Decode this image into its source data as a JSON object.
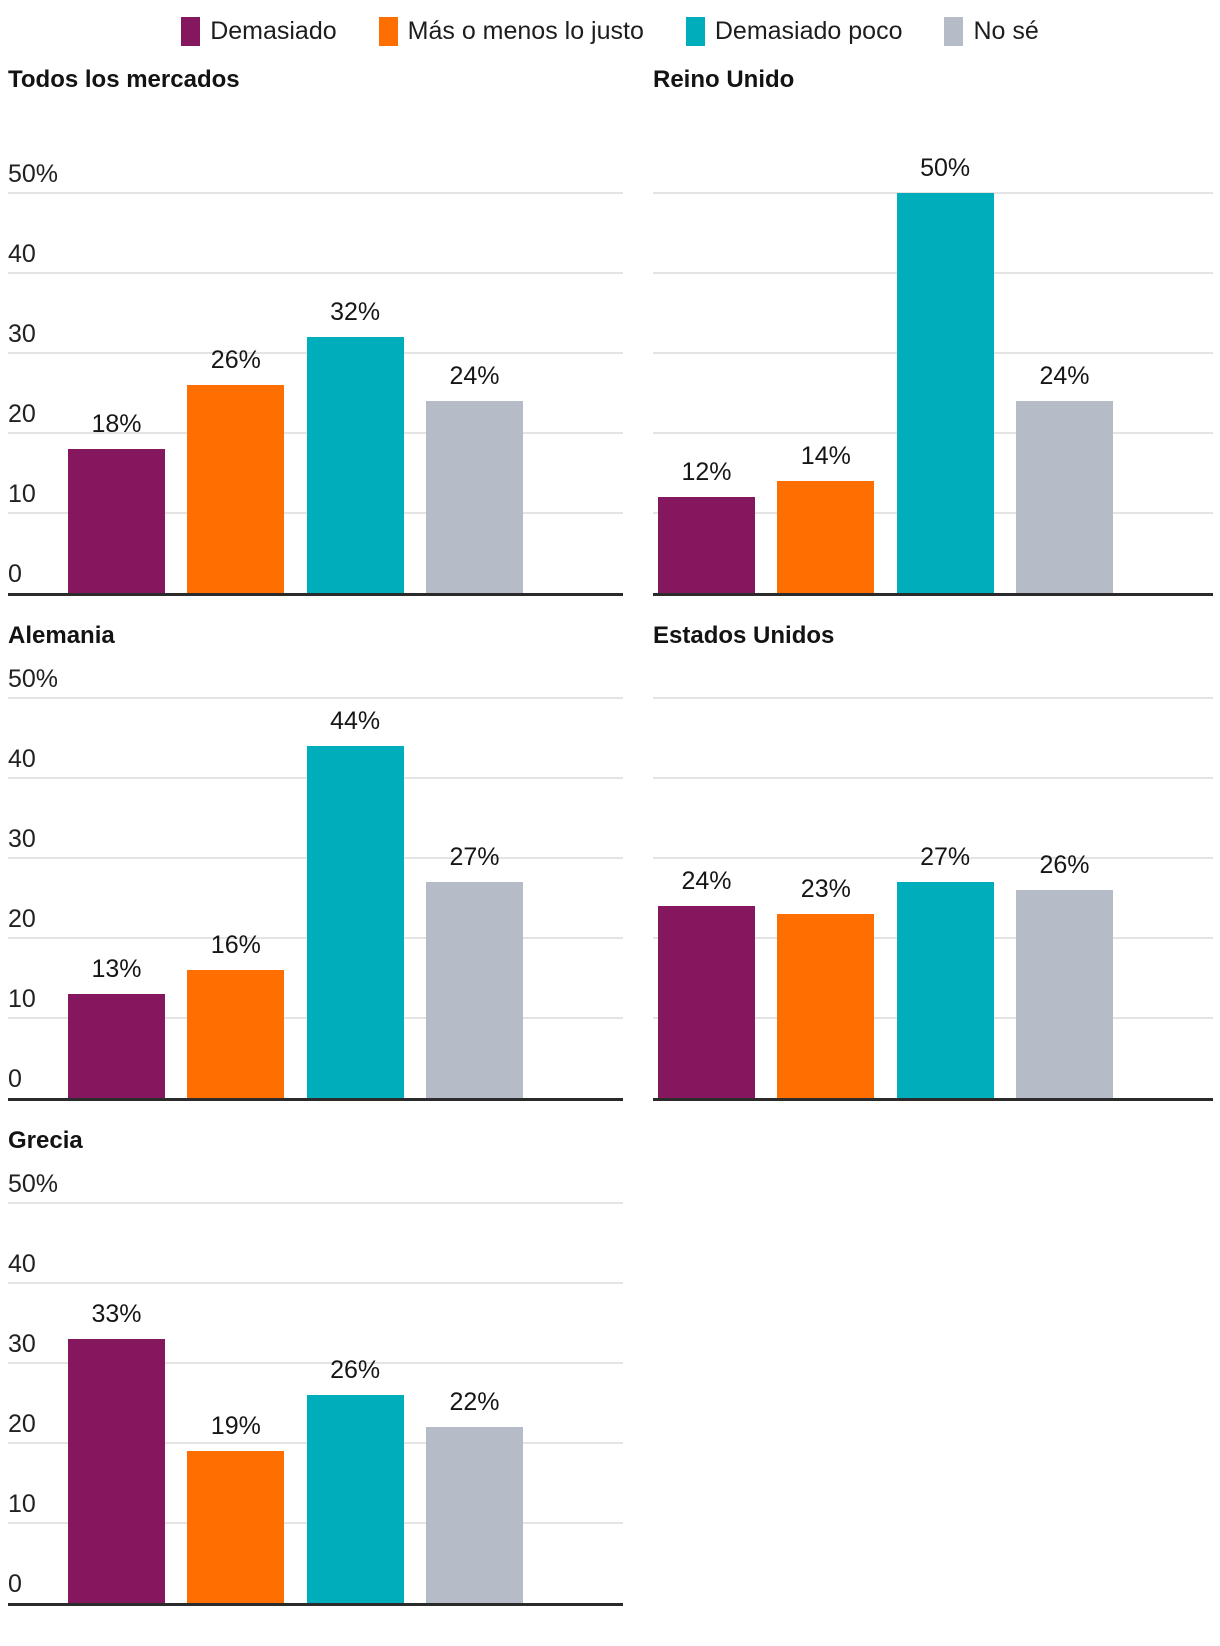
{
  "legend": {
    "items": [
      {
        "label": "Demasiado",
        "color": "#85175F"
      },
      {
        "label": "Más o menos lo justo",
        "color": "#FF6E00"
      },
      {
        "label": "Demasiado poco",
        "color": "#00AEBB"
      },
      {
        "label": "No sé",
        "color": "#B5BCC8"
      }
    ]
  },
  "chart_data": {
    "type": "bar",
    "unit": "%",
    "categories": [
      "Demasiado",
      "Más o menos lo justo",
      "Demasiado poco",
      "No sé"
    ],
    "colors": [
      "#85175F",
      "#FF6E00",
      "#00AEBB",
      "#B5BCC8"
    ],
    "panels": [
      {
        "title": "Todos los mercados",
        "values": [
          18,
          26,
          32,
          24
        ],
        "value_labels": [
          "18%",
          "26%",
          "32%",
          "24%"
        ],
        "show_y_axis_labels": true
      },
      {
        "title": "Reino Unido",
        "values": [
          12,
          14,
          50,
          24
        ],
        "value_labels": [
          "12%",
          "14%",
          "50%",
          "24%"
        ],
        "show_y_axis_labels": false
      },
      {
        "title": "Alemania",
        "values": [
          13,
          16,
          44,
          27
        ],
        "value_labels": [
          "13%",
          "16%",
          "44%",
          "27%"
        ],
        "show_y_axis_labels": true
      },
      {
        "title": "Estados Unidos",
        "values": [
          24,
          23,
          27,
          26
        ],
        "value_labels": [
          "24%",
          "23%",
          "27%",
          "26%"
        ],
        "show_y_axis_labels": false
      },
      {
        "title": "Grecia",
        "values": [
          33,
          19,
          26,
          22
        ],
        "value_labels": [
          "33%",
          "19%",
          "26%",
          "22%"
        ],
        "show_y_axis_labels": true
      }
    ],
    "ylim": [
      0,
      50
    ],
    "yticks": [
      0,
      10,
      20,
      30,
      40,
      50
    ],
    "ytick_labels": [
      "0",
      "10",
      "20",
      "30",
      "40",
      "50%"
    ],
    "grid": true,
    "legend_position": "top",
    "axis_line_color": "#2b2b2b",
    "gridline_color": "#e4e4e4"
  }
}
